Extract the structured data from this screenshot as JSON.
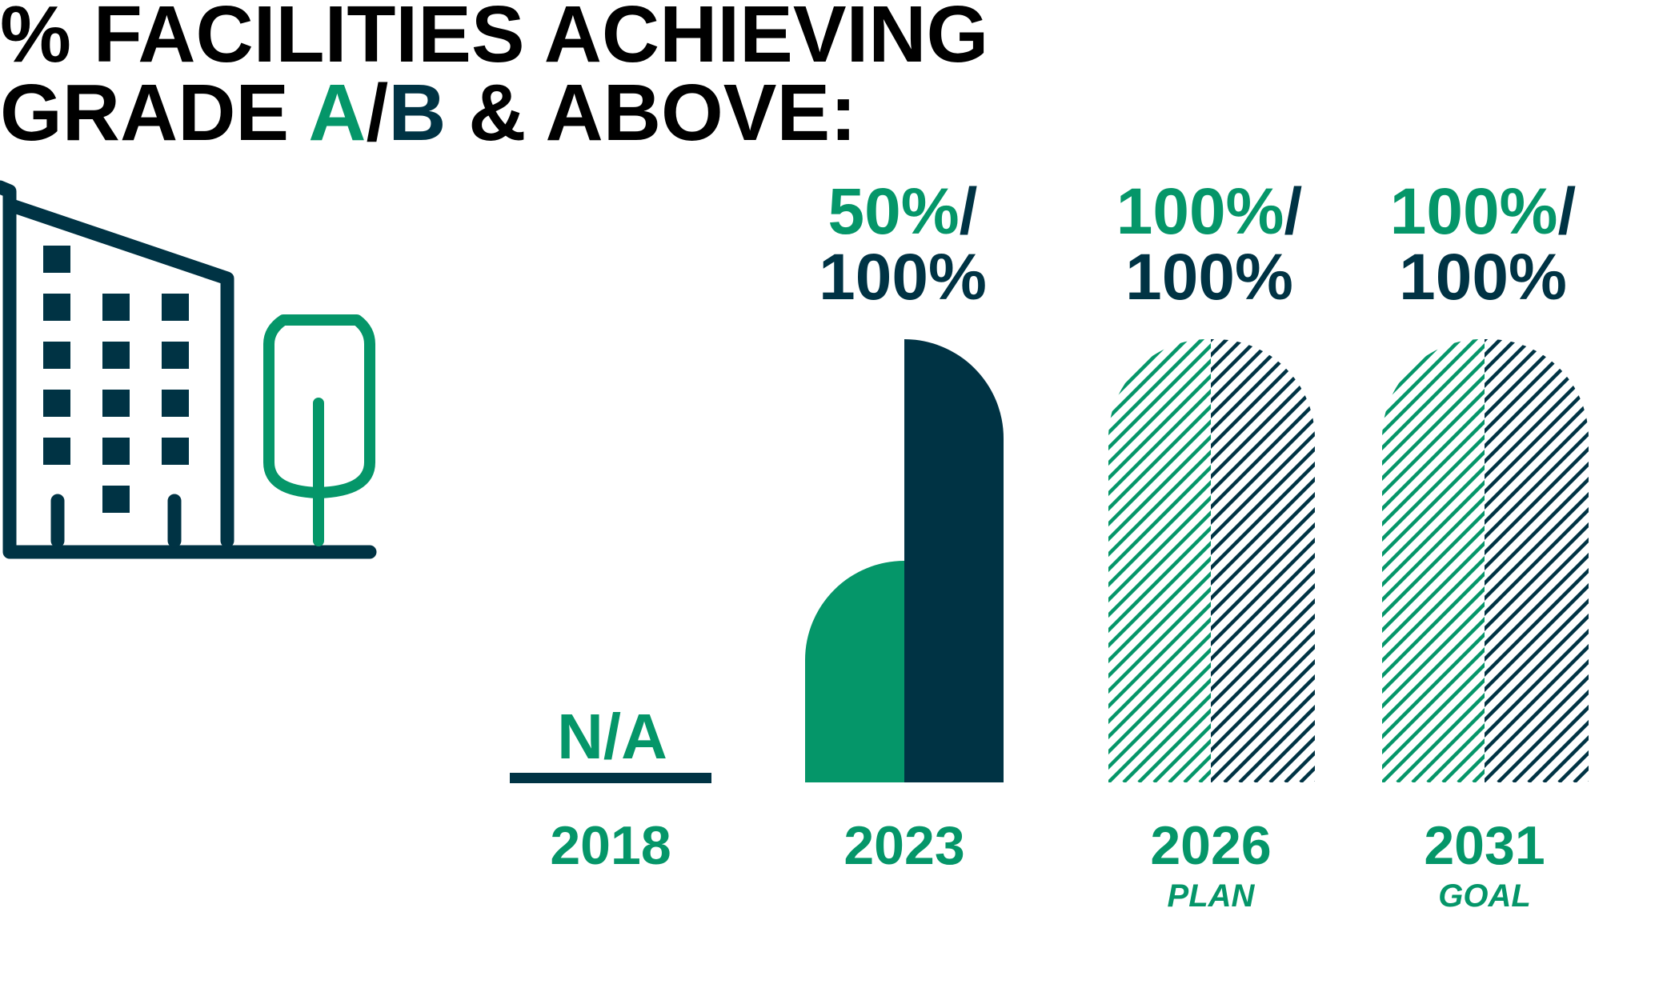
{
  "title": {
    "line1": "% FACILITIES ACHIEVING",
    "line2_pre": "GRADE ",
    "grade_a": "A",
    "slash": "/",
    "grade_b": "B",
    "line2_post": " & ABOVE:"
  },
  "colors": {
    "grade_a": "#059669",
    "grade_b": "#003344"
  },
  "chart_data": {
    "type": "bar",
    "categories": [
      "2018",
      "2023",
      "2026",
      "2031"
    ],
    "category_notes": [
      "",
      "",
      "PLAN",
      "GOAL"
    ],
    "series": [
      {
        "name": "A",
        "values": [
          null,
          50,
          100,
          100
        ]
      },
      {
        "name": "B",
        "values": [
          null,
          100,
          100,
          100
        ]
      }
    ],
    "value_labels": [
      {
        "a": "",
        "sep": "",
        "b": "",
        "na": "N/A"
      },
      {
        "a": "50%",
        "sep": "/",
        "b": "100%",
        "na": ""
      },
      {
        "a": "100%",
        "sep": "/",
        "b": "100%",
        "na": ""
      },
      {
        "a": "100%",
        "sep": "/",
        "b": "100%",
        "na": ""
      }
    ],
    "style": [
      "none",
      "solid",
      "hatched",
      "hatched"
    ],
    "ylim": [
      0,
      100
    ]
  }
}
